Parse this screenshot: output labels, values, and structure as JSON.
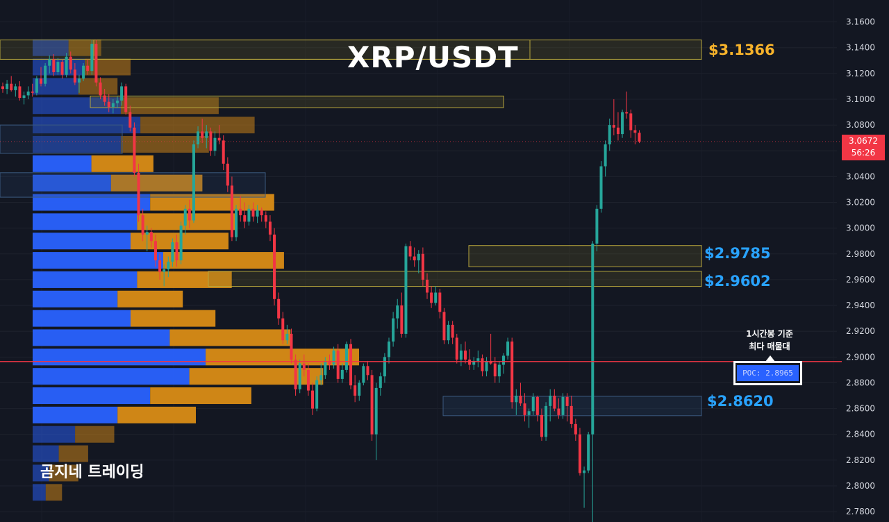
{
  "title": "XRP/USDT",
  "watermark": "곰지네 트레이딩",
  "current_price": {
    "value": "3.0672",
    "countdown": "56:26"
  },
  "zone_labels": [
    {
      "text": "$3.1366",
      "color": "#f7b32b"
    },
    {
      "text": "$2.9785",
      "color": "#29a3ff"
    },
    {
      "text": "$2.9602",
      "color": "#29a3ff"
    },
    {
      "text": "$2.8620",
      "color": "#29a3ff"
    }
  ],
  "poc": {
    "label": "POC: 2.8965",
    "note_line1": "1시간봉 기준",
    "note_line2": "최다 매물대"
  },
  "colors": {
    "up": "#26a69a",
    "down": "#f23645",
    "background": "#131722",
    "volume_buy": "#2962ff",
    "volume_sell": "#d98c16",
    "poc_line": "#f23645"
  },
  "chart_data": {
    "type": "candlestick",
    "title": "XRP/USDT",
    "y_axis": {
      "ticks": [
        "3.1600",
        "3.1400",
        "3.1200",
        "3.1000",
        "3.0800",
        "3.0600",
        "3.0400",
        "3.0200",
        "3.0000",
        "2.9800",
        "2.9600",
        "2.9400",
        "2.9200",
        "2.9000",
        "2.8800",
        "2.8600",
        "2.8400",
        "2.8200",
        "2.8000",
        "2.7800"
      ],
      "range": [
        2.772,
        3.177
      ]
    },
    "current_price": 3.0672,
    "poc": 2.8965,
    "zones": [
      {
        "low": 3.131,
        "high": 3.146,
        "color": "yellow",
        "label": "$3.1366"
      },
      {
        "low": 3.0935,
        "high": 3.1025,
        "color": "yellow",
        "label": ""
      },
      {
        "low": 2.97,
        "high": 2.9865,
        "color": "yellow",
        "label": "$2.9785"
      },
      {
        "low": 2.9548,
        "high": 2.9665,
        "color": "yellow",
        "label": "$2.9602"
      },
      {
        "low": 2.8545,
        "high": 2.8695,
        "color": "blue",
        "label": "$2.8620"
      }
    ],
    "volume_profile": [
      {
        "price": 3.14,
        "buy": 0.11,
        "sell": 0.1
      },
      {
        "price": 3.125,
        "buy": 0.16,
        "sell": 0.14
      },
      {
        "price": 3.11,
        "buy": 0.14,
        "sell": 0.12
      },
      {
        "price": 3.095,
        "buy": 0.27,
        "sell": 0.3
      },
      {
        "price": 3.08,
        "buy": 0.33,
        "sell": 0.35
      },
      {
        "price": 3.065,
        "buy": 0.27,
        "sell": 0.27
      },
      {
        "price": 3.05,
        "buy": 0.18,
        "sell": 0.19
      },
      {
        "price": 3.035,
        "buy": 0.24,
        "sell": 0.28
      },
      {
        "price": 3.02,
        "buy": 0.36,
        "sell": 0.38
      },
      {
        "price": 3.005,
        "buy": 0.32,
        "sell": 0.3
      },
      {
        "price": 2.99,
        "buy": 0.3,
        "sell": 0.3
      },
      {
        "price": 2.975,
        "buy": 0.4,
        "sell": 0.37
      },
      {
        "price": 2.96,
        "buy": 0.32,
        "sell": 0.29
      },
      {
        "price": 2.945,
        "buy": 0.26,
        "sell": 0.2
      },
      {
        "price": 2.93,
        "buy": 0.3,
        "sell": 0.26
      },
      {
        "price": 2.915,
        "buy": 0.42,
        "sell": 0.37
      },
      {
        "price": 2.9,
        "buy": 0.53,
        "sell": 0.47
      },
      {
        "price": 2.885,
        "buy": 0.48,
        "sell": 0.41
      },
      {
        "price": 2.87,
        "buy": 0.36,
        "sell": 0.31
      },
      {
        "price": 2.855,
        "buy": 0.26,
        "sell": 0.24
      },
      {
        "price": 2.84,
        "buy": 0.13,
        "sell": 0.12
      },
      {
        "price": 2.825,
        "buy": 0.08,
        "sell": 0.09
      },
      {
        "price": 2.81,
        "buy": 0.05,
        "sell": 0.09
      },
      {
        "price": 2.795,
        "buy": 0.04,
        "sell": 0.05
      }
    ],
    "candles": [
      [
        3.11,
        3.113,
        3.105,
        3.108
      ],
      [
        3.108,
        3.115,
        3.104,
        3.112
      ],
      [
        3.112,
        3.118,
        3.106,
        3.107
      ],
      [
        3.107,
        3.112,
        3.102,
        3.11
      ],
      [
        3.11,
        3.114,
        3.099,
        3.101
      ],
      [
        3.101,
        3.106,
        3.096,
        3.103
      ],
      [
        3.103,
        3.11,
        3.1,
        3.106
      ],
      [
        3.106,
        3.112,
        3.102,
        3.105
      ],
      [
        3.105,
        3.118,
        3.103,
        3.116
      ],
      [
        3.116,
        3.125,
        3.11,
        3.112
      ],
      [
        3.112,
        3.128,
        3.11,
        3.126
      ],
      [
        3.126,
        3.134,
        3.12,
        3.131
      ],
      [
        3.131,
        3.135,
        3.118,
        3.121
      ],
      [
        3.121,
        3.132,
        3.119,
        3.129
      ],
      [
        3.129,
        3.131,
        3.116,
        3.119
      ],
      [
        3.119,
        3.136,
        3.117,
        3.133
      ],
      [
        3.133,
        3.137,
        3.12,
        3.123
      ],
      [
        3.123,
        3.128,
        3.111,
        3.113
      ],
      [
        3.113,
        3.119,
        3.105,
        3.116
      ],
      [
        3.116,
        3.128,
        3.114,
        3.126
      ],
      [
        3.126,
        3.131,
        3.119,
        3.122
      ],
      [
        3.122,
        3.146,
        3.119,
        3.143
      ],
      [
        3.143,
        3.146,
        3.11,
        3.113
      ],
      [
        3.113,
        3.117,
        3.1,
        3.103
      ],
      [
        3.103,
        3.108,
        3.095,
        3.098
      ],
      [
        3.098,
        3.104,
        3.09,
        3.094
      ],
      [
        3.094,
        3.1,
        3.089,
        3.097
      ],
      [
        3.097,
        3.102,
        3.093,
        3.099
      ],
      [
        3.099,
        3.113,
        3.095,
        3.11
      ],
      [
        3.11,
        3.112,
        3.088,
        3.09
      ],
      [
        3.09,
        3.095,
        3.075,
        3.078
      ],
      [
        3.078,
        3.082,
        3.04,
        3.043
      ],
      [
        3.043,
        3.05,
        3.005,
        3.01
      ],
      [
        3.01,
        3.015,
        2.99,
        2.995
      ],
      [
        2.995,
        3.002,
        2.982,
        2.997
      ],
      [
        2.997,
        3.0,
        2.985,
        2.99
      ],
      [
        2.99,
        2.995,
        2.97,
        2.975
      ],
      [
        2.975,
        2.98,
        2.96,
        2.966
      ],
      [
        2.966,
        2.972,
        2.955,
        2.968
      ],
      [
        2.968,
        2.978,
        2.962,
        2.974
      ],
      [
        2.974,
        2.992,
        2.97,
        2.989
      ],
      [
        2.989,
        2.995,
        2.97,
        2.975
      ],
      [
        2.975,
        3.005,
        2.972,
        3.002
      ],
      [
        3.002,
        3.018,
        2.995,
        3.015
      ],
      [
        3.015,
        3.022,
        3.0,
        3.006
      ],
      [
        3.006,
        3.068,
        3.004,
        3.065
      ],
      [
        3.065,
        3.079,
        3.062,
        3.075
      ],
      [
        3.075,
        3.085,
        3.066,
        3.07
      ],
      [
        3.07,
        3.08,
        3.062,
        3.075
      ],
      [
        3.075,
        3.078,
        3.056,
        3.06
      ],
      [
        3.06,
        3.075,
        3.056,
        3.07
      ],
      [
        3.07,
        3.08,
        3.065,
        3.068
      ],
      [
        3.068,
        3.072,
        3.045,
        3.05
      ],
      [
        3.05,
        3.055,
        3.028,
        3.033
      ],
      [
        3.033,
        3.04,
        2.99,
        2.993
      ],
      [
        2.993,
        3.018,
        2.99,
        3.015
      ],
      [
        3.015,
        3.025,
        3.005,
        3.01
      ],
      [
        3.01,
        3.02,
        3.0,
        3.005
      ],
      [
        3.005,
        3.018,
        3.002,
        3.015
      ],
      [
        3.015,
        3.02,
        3.005,
        3.009
      ],
      [
        3.009,
        3.018,
        3.004,
        3.014
      ],
      [
        3.014,
        3.016,
        3.005,
        3.01
      ],
      [
        3.01,
        3.013,
        3.0,
        3.005
      ],
      [
        3.005,
        3.01,
        2.99,
        2.995
      ],
      [
        2.995,
        3.0,
        2.94,
        2.945
      ],
      [
        2.945,
        2.95,
        2.925,
        2.93
      ],
      [
        2.93,
        2.935,
        2.91,
        2.913
      ],
      [
        2.913,
        2.925,
        2.91,
        2.918
      ],
      [
        2.918,
        2.922,
        2.895,
        2.898
      ],
      [
        2.898,
        2.902,
        2.87,
        2.875
      ],
      [
        2.875,
        2.898,
        2.872,
        2.895
      ],
      [
        2.895,
        2.902,
        2.885,
        2.89
      ],
      [
        2.89,
        2.895,
        2.87,
        2.874
      ],
      [
        2.874,
        2.88,
        2.855,
        2.86
      ],
      [
        2.86,
        2.885,
        2.858,
        2.882
      ],
      [
        2.882,
        2.895,
        2.878,
        2.886
      ],
      [
        2.886,
        2.9,
        2.883,
        2.897
      ],
      [
        2.897,
        2.902,
        2.89,
        2.894
      ],
      [
        2.894,
        2.908,
        2.891,
        2.905
      ],
      [
        2.905,
        2.91,
        2.88,
        2.883
      ],
      [
        2.883,
        2.895,
        2.88,
        2.89
      ],
      [
        2.89,
        2.912,
        2.888,
        2.91
      ],
      [
        2.91,
        2.914,
        2.875,
        2.878
      ],
      [
        2.878,
        2.886,
        2.865,
        2.87
      ],
      [
        2.87,
        2.882,
        2.866,
        2.88
      ],
      [
        2.88,
        2.895,
        2.878,
        2.893
      ],
      [
        2.893,
        2.897,
        2.882,
        2.886
      ],
      [
        2.886,
        2.89,
        2.835,
        2.84
      ],
      [
        2.84,
        2.88,
        2.82,
        2.876
      ],
      [
        2.876,
        2.888,
        2.87,
        2.885
      ],
      [
        2.885,
        2.903,
        2.88,
        2.9
      ],
      [
        2.9,
        2.915,
        2.895,
        2.912
      ],
      [
        2.912,
        2.935,
        2.908,
        2.93
      ],
      [
        2.93,
        2.945,
        2.922,
        2.94
      ],
      [
        2.94,
        2.95,
        2.915,
        2.918
      ],
      [
        2.918,
        2.988,
        2.915,
        2.986
      ],
      [
        2.986,
        2.99,
        2.975,
        2.978
      ],
      [
        2.978,
        2.985,
        2.97,
        2.975
      ],
      [
        2.975,
        2.983,
        2.965,
        2.98
      ],
      [
        2.98,
        2.985,
        2.955,
        2.96
      ],
      [
        2.96,
        2.965,
        2.945,
        2.95
      ],
      [
        2.95,
        2.955,
        2.938,
        2.942
      ],
      [
        2.942,
        2.955,
        2.94,
        2.95
      ],
      [
        2.95,
        2.953,
        2.93,
        2.935
      ],
      [
        2.935,
        2.938,
        2.91,
        2.913
      ],
      [
        2.913,
        2.928,
        2.91,
        2.925
      ],
      [
        2.925,
        2.928,
        2.91,
        2.915
      ],
      [
        2.915,
        2.918,
        2.895,
        2.898
      ],
      [
        2.898,
        2.91,
        2.893,
        2.905
      ],
      [
        2.905,
        2.912,
        2.895,
        2.898
      ],
      [
        2.898,
        2.906,
        2.89,
        2.894
      ],
      [
        2.894,
        2.9,
        2.89,
        2.897
      ],
      [
        2.897,
        2.905,
        2.892,
        2.899
      ],
      [
        2.899,
        2.902,
        2.885,
        2.889
      ],
      [
        2.889,
        2.9,
        2.885,
        2.897
      ],
      [
        2.897,
        2.918,
        2.894,
        2.895
      ],
      [
        2.895,
        2.9,
        2.88,
        2.885
      ],
      [
        2.885,
        2.897,
        2.88,
        2.894
      ],
      [
        2.894,
        2.903,
        2.887,
        2.901
      ],
      [
        2.901,
        2.915,
        2.898,
        2.912
      ],
      [
        2.912,
        2.915,
        2.86,
        2.865
      ],
      [
        2.865,
        2.875,
        2.855,
        2.87
      ],
      [
        2.87,
        2.88,
        2.862,
        2.864
      ],
      [
        2.864,
        2.872,
        2.85,
        2.855
      ],
      [
        2.855,
        2.86,
        2.845,
        2.858
      ],
      [
        2.858,
        2.872,
        2.855,
        2.869
      ],
      [
        2.869,
        2.87,
        2.85,
        2.855
      ],
      [
        2.855,
        2.86,
        2.835,
        2.838
      ],
      [
        2.838,
        2.865,
        2.835,
        2.862
      ],
      [
        2.862,
        2.875,
        2.85,
        2.87
      ],
      [
        2.87,
        2.875,
        2.858,
        2.86
      ],
      [
        2.86,
        2.868,
        2.852,
        2.855
      ],
      [
        2.855,
        2.872,
        2.852,
        2.869
      ],
      [
        2.869,
        2.872,
        2.85,
        2.862
      ],
      [
        2.862,
        2.87,
        2.845,
        2.848
      ],
      [
        2.848,
        2.852,
        2.835,
        2.84
      ],
      [
        2.84,
        2.845,
        2.808,
        2.81
      ],
      [
        2.81,
        2.815,
        2.783,
        2.812
      ],
      [
        2.812,
        2.842,
        2.81,
        2.84
      ],
      [
        2.84,
        2.99,
        2.77,
        2.988
      ],
      [
        2.988,
        3.018,
        2.982,
        3.015
      ],
      [
        3.015,
        3.052,
        3.012,
        3.048
      ],
      [
        3.048,
        3.068,
        3.04,
        3.065
      ],
      [
        3.065,
        3.085,
        3.06,
        3.08
      ],
      [
        3.08,
        3.1,
        3.072,
        3.078
      ],
      [
        3.078,
        3.09,
        3.068,
        3.073
      ],
      [
        3.073,
        3.092,
        3.07,
        3.09
      ],
      [
        3.09,
        3.106,
        3.085,
        3.089
      ],
      [
        3.089,
        3.092,
        3.07,
        3.076
      ],
      [
        3.076,
        3.08,
        3.065,
        3.074
      ],
      [
        3.074,
        3.076,
        3.066,
        3.067
      ]
    ]
  }
}
